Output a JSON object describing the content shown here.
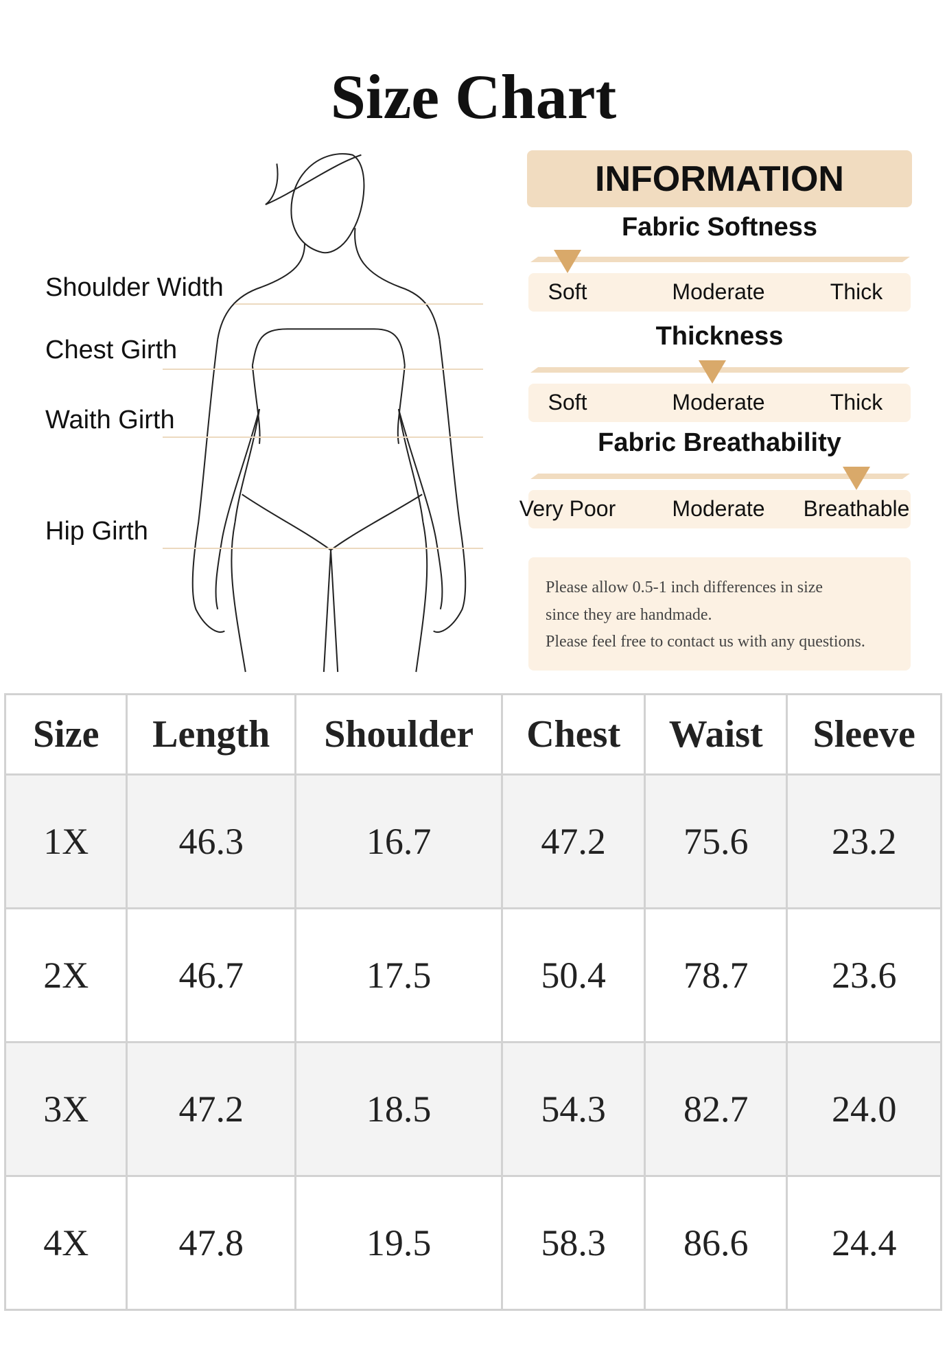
{
  "title": "Size Chart",
  "measurements": [
    {
      "label": "Shoulder Width"
    },
    {
      "label": "Chest Girth"
    },
    {
      "label": "Waith Girth"
    },
    {
      "label": "Hip Girth"
    }
  ],
  "info": {
    "header": "INFORMATION",
    "accent_color": "#d9a96a",
    "band_color": "#fcf1e3",
    "header_color": "#f1dcc0",
    "scales": [
      {
        "title": "Fabric Softness",
        "labels": [
          "Soft",
          "Moderate",
          "Thick"
        ],
        "selected": "Soft",
        "level": 0
      },
      {
        "title": "Thickness",
        "labels": [
          "Soft",
          "Moderate",
          "Thick"
        ],
        "selected": "Moderate",
        "level": 0.5
      },
      {
        "title": "Fabric Breathability",
        "labels": [
          "Very Poor",
          "Moderate",
          "Breathable"
        ],
        "selected": "Breathable",
        "level": 1
      }
    ],
    "note": [
      "Please allow 0.5-1 inch differences in size",
      "since they are handmade.",
      "Please feel free to contact us with any questions."
    ]
  },
  "table": {
    "headers": [
      "Size",
      "Length",
      "Shoulder",
      "Chest",
      "Waist",
      "Sleeve"
    ],
    "rows": [
      [
        "1X",
        "46.3",
        "16.7",
        "47.2",
        "75.6",
        "23.2"
      ],
      [
        "2X",
        "46.7",
        "17.5",
        "50.4",
        "78.7",
        "23.6"
      ],
      [
        "3X",
        "47.2",
        "18.5",
        "54.3",
        "82.7",
        "24.0"
      ],
      [
        "4X",
        "47.8",
        "19.5",
        "58.3",
        "86.6",
        "24.4"
      ]
    ]
  }
}
